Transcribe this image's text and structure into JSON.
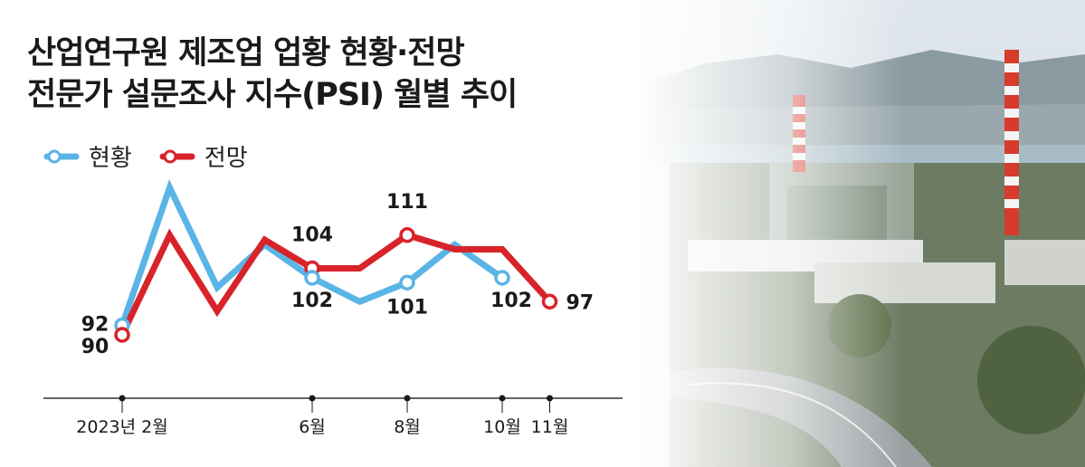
{
  "title": {
    "line1": "산업연구원 제조업 업황 현황·전망",
    "line2": "전문가 설문조사 지수(PSI) 월별 추이"
  },
  "legend": [
    {
      "label": "현황",
      "color": "#5ab4e6"
    },
    {
      "label": "전망",
      "color": "#d8232a"
    }
  ],
  "chart_data": {
    "type": "line",
    "title": "산업연구원 제조업 업황 현황·전망 전문가 설문조사 지수(PSI) 월별 추이",
    "x": [
      "2023-02",
      "2023-03",
      "2023-04",
      "2023-05",
      "2023-06",
      "2023-07",
      "2023-08",
      "2023-09",
      "2023-10",
      "2023-11"
    ],
    "series": [
      {
        "name": "현황",
        "color": "#5ab4e6",
        "values": [
          92,
          121,
          100,
          109,
          102,
          97,
          101,
          109,
          102,
          null
        ]
      },
      {
        "name": "전망",
        "color": "#d8232a",
        "values": [
          90,
          111,
          95,
          110,
          104,
          104,
          111,
          108,
          108,
          97
        ]
      }
    ],
    "data_labels": [
      {
        "series": "현황",
        "index": 0,
        "text": "92"
      },
      {
        "series": "전망",
        "index": 0,
        "text": "90"
      },
      {
        "series": "전망",
        "index": 4,
        "text": "104"
      },
      {
        "series": "현황",
        "index": 4,
        "text": "102"
      },
      {
        "series": "전망",
        "index": 6,
        "text": "111"
      },
      {
        "series": "현황",
        "index": 6,
        "text": "101"
      },
      {
        "series": "현황",
        "index": 8,
        "text": "102"
      },
      {
        "series": "전망",
        "index": 9,
        "text": "97"
      }
    ],
    "x_tick_labels": [
      {
        "index": 0,
        "text": "2023년 2월"
      },
      {
        "index": 4,
        "text": "6월"
      },
      {
        "index": 6,
        "text": "8월"
      },
      {
        "index": 8,
        "text": "10월"
      },
      {
        "index": 9,
        "text": "11월"
      }
    ],
    "ylim": [
      60,
      130
    ],
    "grid": false,
    "legend_position": "top-left"
  },
  "photo": {
    "subject": "industrial-plant-photo"
  }
}
